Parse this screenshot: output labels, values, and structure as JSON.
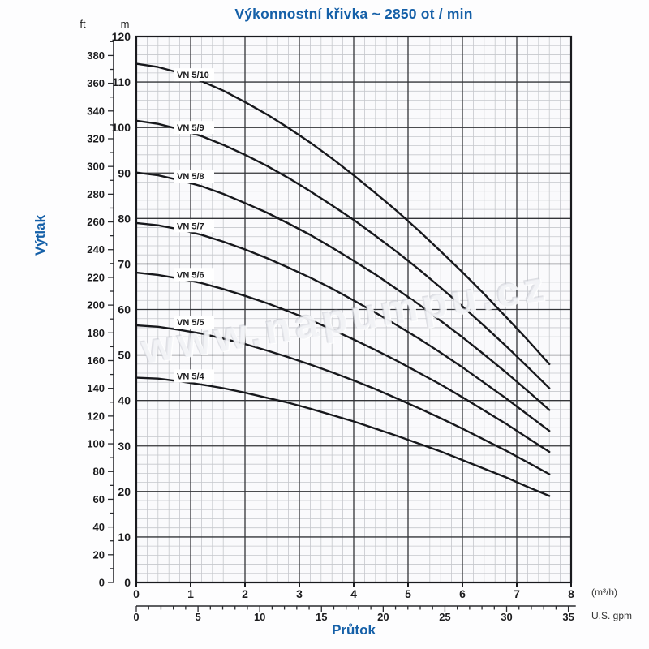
{
  "title": "Výkonnostní křivka ~ 2850 ot / min",
  "watermark": "www.napumpu.cz",
  "colors": {
    "accent_blue": "#1560a8",
    "curve_black": "#17181c",
    "grid_minor": "#c5c7cc",
    "grid_major": "#333438",
    "plot_border": "#1a1b1f",
    "tick_text": "#1c1c1e",
    "plot_background": "#fafafc"
  },
  "y_axis": {
    "label": "Výtlak",
    "unit_primary": "m",
    "unit_secondary": "ft",
    "m_ticks": [
      0,
      10,
      20,
      30,
      40,
      50,
      60,
      70,
      80,
      90,
      100,
      110,
      120
    ],
    "ft_ticks": [
      0,
      20,
      40,
      60,
      80,
      100,
      120,
      140,
      160,
      180,
      200,
      220,
      240,
      260,
      280,
      300,
      320,
      340,
      360,
      380
    ]
  },
  "x_axis": {
    "label": "Průtok",
    "unit_primary": "(m³/h)",
    "unit_secondary": "U.S. gpm",
    "m3h_ticks": [
      0,
      1,
      2,
      3,
      4,
      5,
      6,
      7,
      8
    ],
    "gpm_ticks": [
      0,
      5,
      10,
      15,
      20,
      25,
      30,
      35
    ]
  },
  "chart_data": {
    "type": "line",
    "title": "Výkonnostní křivka ~ 2850 ot / min",
    "xlabel": "Průtok",
    "ylabel": "Výtlak",
    "x_unit": "m³/h",
    "x_unit_secondary": "U.S. gpm",
    "y_unit": "m",
    "y_unit_secondary": "ft",
    "xlim": [
      0,
      8
    ],
    "ylim": [
      0,
      120
    ],
    "ft_axis_max": 390,
    "gpm_axis_max": 35.6,
    "grid": true,
    "legend": "inline-curve-labels",
    "x": [
      0,
      0.4,
      0.8,
      1.2,
      1.6,
      2.0,
      2.4,
      2.8,
      3.2,
      3.6,
      4.0,
      4.4,
      4.8,
      5.2,
      5.6,
      6.0,
      6.4,
      6.8,
      7.2,
      7.6
    ],
    "series": [
      {
        "name": "VN 5/10",
        "label_head_m": 111.6,
        "values": [
          114.0,
          113.3,
          112.0,
          110.2,
          108.1,
          105.6,
          102.9,
          99.9,
          96.7,
          93.2,
          89.5,
          85.6,
          81.6,
          77.3,
          72.8,
          68.2,
          63.4,
          58.4,
          53.3,
          48.0
        ]
      },
      {
        "name": "VN 5/9",
        "label_head_m": 100.0,
        "values": [
          101.5,
          100.8,
          99.6,
          98.1,
          96.2,
          94.0,
          91.6,
          88.9,
          86.0,
          82.9,
          79.7,
          76.2,
          72.6,
          68.8,
          64.8,
          60.7,
          56.4,
          52.0,
          47.4,
          42.7
        ]
      },
      {
        "name": "VN 5/8",
        "label_head_m": 89.3,
        "values": [
          90.1,
          89.5,
          88.4,
          87.1,
          85.4,
          83.4,
          81.3,
          78.9,
          76.4,
          73.6,
          70.7,
          67.7,
          64.4,
          61.1,
          57.5,
          53.9,
          50.1,
          46.2,
          42.1,
          37.9
        ]
      },
      {
        "name": "VN 5/7",
        "label_head_m": 78.4,
        "values": [
          79.0,
          78.5,
          77.6,
          76.4,
          74.9,
          73.2,
          71.3,
          69.2,
          67.0,
          64.6,
          62.0,
          59.3,
          56.5,
          53.6,
          50.5,
          47.3,
          43.9,
          40.5,
          36.9,
          33.3
        ]
      },
      {
        "name": "VN 5/6",
        "label_head_m": 67.7,
        "values": [
          68.1,
          67.6,
          66.8,
          65.8,
          64.5,
          63.0,
          61.4,
          59.6,
          57.7,
          55.6,
          53.4,
          51.1,
          48.7,
          46.1,
          43.5,
          40.7,
          37.8,
          34.9,
          31.8,
          28.7
        ]
      },
      {
        "name": "VN 5/5",
        "label_head_m": 57.2,
        "values": [
          56.5,
          56.2,
          55.5,
          54.7,
          53.6,
          52.4,
          51.0,
          49.5,
          47.9,
          46.2,
          44.4,
          42.5,
          40.4,
          38.3,
          36.1,
          33.8,
          31.4,
          29.0,
          26.4,
          23.8
        ]
      },
      {
        "name": "VN 5/4",
        "label_head_m": 45.4,
        "values": [
          45.0,
          44.8,
          44.2,
          43.5,
          42.7,
          41.7,
          40.6,
          39.5,
          38.2,
          36.8,
          35.4,
          33.8,
          32.2,
          30.5,
          28.8,
          26.9,
          25.0,
          23.1,
          21.0,
          19.0
        ]
      }
    ]
  }
}
